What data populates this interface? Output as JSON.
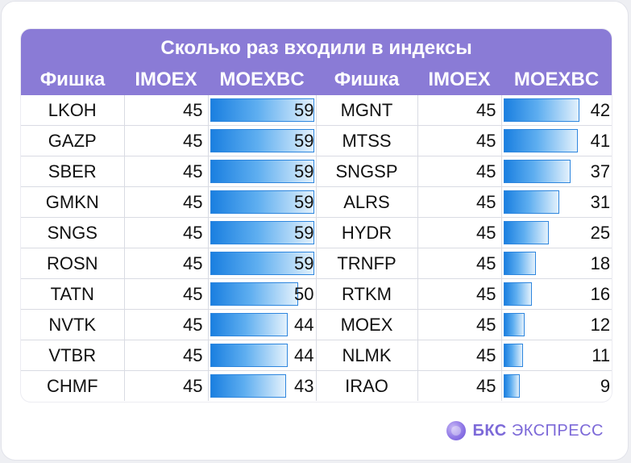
{
  "title": "Сколько раз входили в индексы",
  "columns": [
    "Фишка",
    "IMOEX",
    "MOEXBC",
    "Фишка",
    "IMOEX",
    "MOEXBC"
  ],
  "brand": {
    "bold": "БКС",
    "rest": "ЭКСПРЕСС",
    "accent": "#8a7bd6"
  },
  "bar_max": 59,
  "left_rows": [
    {
      "ticker": "LKOH",
      "imoex": "45",
      "moexbc": 59
    },
    {
      "ticker": "GAZP",
      "imoex": "45",
      "moexbc": 59
    },
    {
      "ticker": "SBER",
      "imoex": "45",
      "moexbc": 59
    },
    {
      "ticker": "GMKN",
      "imoex": "45",
      "moexbc": 59
    },
    {
      "ticker": "SNGS",
      "imoex": "45",
      "moexbc": 59
    },
    {
      "ticker": "ROSN",
      "imoex": "45",
      "moexbc": 59
    },
    {
      "ticker": "TATN",
      "imoex": "45",
      "moexbc": 50
    },
    {
      "ticker": "NVTK",
      "imoex": "45",
      "moexbc": 44
    },
    {
      "ticker": "VTBR",
      "imoex": "45",
      "moexbc": 44
    },
    {
      "ticker": "CHMF",
      "imoex": "45",
      "moexbc": 43
    }
  ],
  "right_rows": [
    {
      "ticker": "MGNT",
      "imoex": "45",
      "moexbc": 42
    },
    {
      "ticker": "MTSS",
      "imoex": "45",
      "moexbc": 41
    },
    {
      "ticker": "SNGSP",
      "imoex": "45",
      "moexbc": 37
    },
    {
      "ticker": "ALRS",
      "imoex": "45",
      "moexbc": 31
    },
    {
      "ticker": "HYDR",
      "imoex": "45",
      "moexbc": 25
    },
    {
      "ticker": "TRNFP",
      "imoex": "45",
      "moexbc": 18
    },
    {
      "ticker": "RTKM",
      "imoex": "45",
      "moexbc": 16
    },
    {
      "ticker": "MOEX",
      "imoex": "45",
      "moexbc": 12
    },
    {
      "ticker": "NLMK",
      "imoex": "45",
      "moexbc": 11
    },
    {
      "ticker": "IRAO",
      "imoex": "45",
      "moexbc": 9
    }
  ]
}
